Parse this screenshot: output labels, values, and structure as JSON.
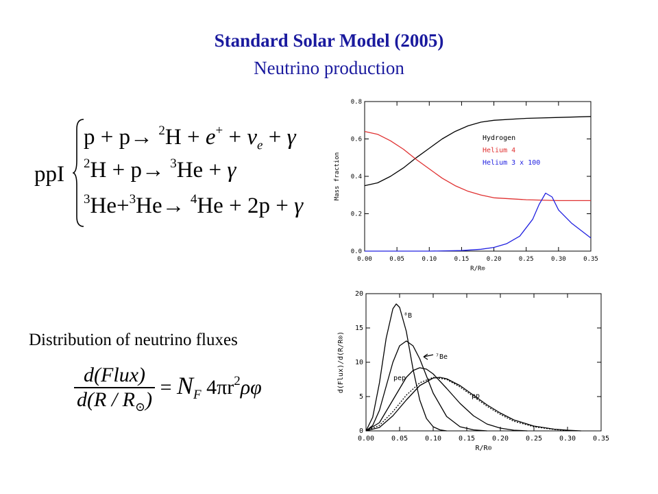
{
  "slide": {
    "title": "Standard Solar Model (2005)",
    "subtitle": "Neutrino production",
    "pp_label": "ppI",
    "reactions": [
      {
        "lhs_a": "p",
        "op_a": "+",
        "lhs_b": "p",
        "arrow": "→",
        "prod_mass": "2",
        "prod": "H",
        "rest_1": "+",
        "pos_e": "e",
        "pos_sup": "+",
        "rest_2": "+",
        "nu": "ν",
        "nu_sub": "e",
        "rest_3": "+",
        "gamma": "γ"
      },
      {
        "lhs_mass": "2",
        "lhs_a": "H",
        "op_a": "+",
        "lhs_b": "p",
        "arrow": "→",
        "prod_mass": "3",
        "prod": "He",
        "rest_1": "+",
        "gamma": "γ"
      },
      {
        "lhs_mass": "3",
        "lhs_a": "He",
        "op_a": "+",
        "lhs_b_mass": "3",
        "lhs_b": "He",
        "arrow": "→",
        "prod_mass": "4",
        "prod": "He",
        "rest_1": "+",
        "coef": "2p",
        "rest_2": "+",
        "gamma": "γ"
      }
    ],
    "flux_caption": "Distribution of neutrino fluxes",
    "flux_equation": {
      "numerator": "d(Flux)",
      "denominator_left": "d(R / R",
      "denominator_right": ")",
      "equals": "=",
      "nf": "N",
      "nf_sub": "F",
      "rhs": "4πr",
      "rhs_sup": "2",
      "rhs_tail": "ρφ"
    }
  },
  "chart_data": [
    {
      "type": "line",
      "xlabel": "R/R⊙",
      "ylabel": "Mass fraction",
      "xlim": [
        0.0,
        0.35
      ],
      "ylim": [
        0.0,
        0.8
      ],
      "x_ticks": [
        "0.00",
        "0.05",
        "0.10",
        "0.15",
        "0.20",
        "0.25",
        "0.30",
        "0.35"
      ],
      "y_ticks": [
        "0.0",
        "0.2",
        "0.4",
        "0.6",
        "0.8"
      ],
      "legend_position": "right",
      "series": [
        {
          "name": "Hydrogen",
          "color": "#000000",
          "x": [
            0.0,
            0.02,
            0.04,
            0.06,
            0.08,
            0.1,
            0.12,
            0.14,
            0.16,
            0.18,
            0.2,
            0.25,
            0.3,
            0.35
          ],
          "y": [
            0.35,
            0.365,
            0.4,
            0.445,
            0.5,
            0.55,
            0.6,
            0.64,
            0.67,
            0.69,
            0.7,
            0.71,
            0.715,
            0.72
          ]
        },
        {
          "name": "Helium 4",
          "color": "#e03030",
          "x": [
            0.0,
            0.02,
            0.04,
            0.06,
            0.08,
            0.1,
            0.12,
            0.14,
            0.16,
            0.18,
            0.2,
            0.25,
            0.3,
            0.35
          ],
          "y": [
            0.64,
            0.625,
            0.59,
            0.545,
            0.49,
            0.44,
            0.39,
            0.35,
            0.32,
            0.3,
            0.285,
            0.275,
            0.27,
            0.27
          ]
        },
        {
          "name": "Helium 3 x 100",
          "color": "#2020e0",
          "x": [
            0.0,
            0.1,
            0.15,
            0.18,
            0.2,
            0.22,
            0.24,
            0.26,
            0.27,
            0.28,
            0.29,
            0.3,
            0.32,
            0.35
          ],
          "y": [
            0.0,
            0.0,
            0.003,
            0.01,
            0.02,
            0.04,
            0.08,
            0.17,
            0.25,
            0.31,
            0.29,
            0.22,
            0.15,
            0.07
          ]
        }
      ]
    },
    {
      "type": "line",
      "xlabel": "R/R⊙",
      "ylabel": "d(Flux)/d(R/R⊙)",
      "xlim": [
        0.0,
        0.35
      ],
      "ylim": [
        0,
        20
      ],
      "x_ticks": [
        "0.00",
        "0.05",
        "0.10",
        "0.15",
        "0.20",
        "0.25",
        "0.30",
        "0.35"
      ],
      "y_ticks": [
        "0",
        "5",
        "10",
        "15",
        "20"
      ],
      "annotations": [
        "⁸B",
        "⁷Be",
        "pep",
        "pp"
      ],
      "series": [
        {
          "name": "⁸B",
          "color": "#000000",
          "x": [
            0.0,
            0.01,
            0.02,
            0.03,
            0.04,
            0.045,
            0.05,
            0.06,
            0.07,
            0.08,
            0.09,
            0.1,
            0.11,
            0.12
          ],
          "y": [
            0,
            2,
            7,
            13.5,
            17.8,
            18.5,
            18.0,
            14.5,
            9,
            4.5,
            1.8,
            0.6,
            0.15,
            0
          ]
        },
        {
          "name": "⁷Be",
          "color": "#000000",
          "x": [
            0.0,
            0.01,
            0.02,
            0.03,
            0.04,
            0.05,
            0.06,
            0.07,
            0.08,
            0.09,
            0.1,
            0.12,
            0.14,
            0.16,
            0.18
          ],
          "y": [
            0,
            0.8,
            3,
            6.5,
            10,
            12.4,
            13.1,
            12.4,
            10.5,
            8,
            5.5,
            2.1,
            0.6,
            0.15,
            0
          ]
        },
        {
          "name": "pep",
          "color": "#000000",
          "x": [
            0.0,
            0.02,
            0.04,
            0.06,
            0.07,
            0.08,
            0.09,
            0.1,
            0.12,
            0.14,
            0.16,
            0.18,
            0.2,
            0.22,
            0.24
          ],
          "y": [
            0,
            1.2,
            4.5,
            7.8,
            8.8,
            9.2,
            9.0,
            8.3,
            6.2,
            4.0,
            2.2,
            1.0,
            0.4,
            0.1,
            0
          ]
        },
        {
          "name": "pp",
          "color": "#000000",
          "x": [
            0.0,
            0.02,
            0.04,
            0.06,
            0.08,
            0.1,
            0.11,
            0.12,
            0.14,
            0.16,
            0.18,
            0.2,
            0.22,
            0.25,
            0.28,
            0.3,
            0.32
          ],
          "y": [
            0,
            0.5,
            2.2,
            4.5,
            6.6,
            7.7,
            7.8,
            7.6,
            6.6,
            5.2,
            3.8,
            2.6,
            1.6,
            0.7,
            0.25,
            0.1,
            0
          ]
        },
        {
          "name": "pp-dotted",
          "color": "#000000",
          "dashed": true,
          "x": [
            0.0,
            0.02,
            0.04,
            0.06,
            0.08,
            0.1,
            0.12,
            0.14,
            0.16,
            0.18,
            0.2,
            0.22,
            0.25,
            0.28,
            0.3
          ],
          "y": [
            0,
            0.8,
            2.8,
            5.2,
            7.0,
            7.8,
            7.5,
            6.4,
            5.0,
            3.6,
            2.4,
            1.4,
            0.6,
            0.2,
            0.05
          ]
        }
      ]
    }
  ]
}
